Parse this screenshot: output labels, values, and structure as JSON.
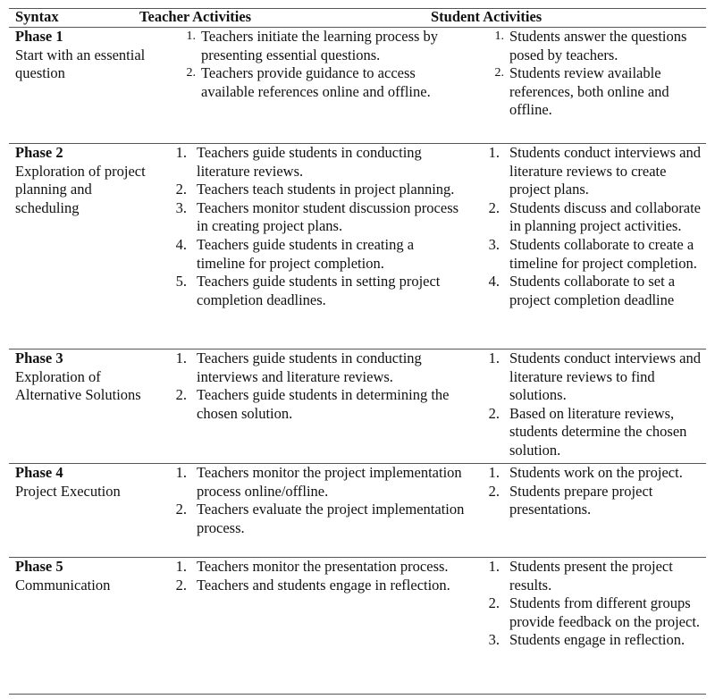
{
  "headers": [
    "Syntax",
    "Teacher Activities",
    "Student Activities"
  ],
  "rows": [
    {
      "phase": "Phase 1",
      "name": "Start with an essential question",
      "teacher": [
        "Teachers initiate the learning process by presenting essential questions.",
        "Teachers provide guidance to access available references online and offline."
      ],
      "student": [
        "Students answer the questions posed by teachers.",
        "Students review available references, both online and offline."
      ]
    },
    {
      "phase": "Phase 2",
      "name": "Exploration of project planning and scheduling",
      "teacher": [
        "Teachers guide students in conducting literature reviews.",
        "Teachers teach students in project planning.",
        "Teachers monitor student discussion process in creating project plans.",
        "Teachers guide students in creating a timeline for project completion.",
        "Teachers guide students in setting project completion deadlines."
      ],
      "student": [
        "Students conduct interviews and literature reviews to create project plans.",
        "Students discuss and collaborate in planning project activities.",
        "Students collaborate to create a timeline for project completion.",
        "Students collaborate to set a project completion deadline"
      ]
    },
    {
      "phase": "Phase 3",
      "name": "Exploration of Alternative Solutions",
      "teacher": [
        "Teachers guide students in conducting interviews and literature reviews.",
        "Teachers guide students in determining the chosen solution."
      ],
      "student": [
        "Students conduct interviews and literature reviews to find solutions.",
        "Based on literature reviews, students determine the chosen solution."
      ]
    },
    {
      "phase": "Phase 4",
      "name": "Project Execution",
      "teacher": [
        "Teachers monitor the project implementation process online/offline.",
        "Teachers evaluate the project implementation process."
      ],
      "student": [
        "Students work on the project.",
        "Students prepare project presentations."
      ]
    },
    {
      "phase": "Phase 5",
      "name": "Communication",
      "teacher": [
        "Teachers monitor the presentation process.",
        "Teachers and students engage in reflection."
      ],
      "student": [
        "Students present the project results.",
        "Students from different groups provide feedback on the project.",
        "Students engage in reflection."
      ]
    }
  ]
}
